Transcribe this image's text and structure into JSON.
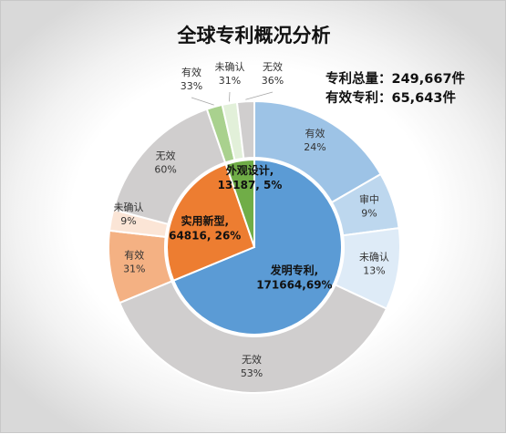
{
  "chart_data": {
    "type": "pie",
    "title": "全球专利概况分析",
    "summary": {
      "total_label": "专利总量：",
      "total_value": "249,667件",
      "valid_label": "有效专利：",
      "valid_value": "65,643件"
    },
    "inner": [
      {
        "name": "发明专利",
        "value": 171664,
        "label": "发明专利,",
        "sublabel": "171664,69%",
        "color": "#5b9bd5"
      },
      {
        "name": "实用新型",
        "value": 64816,
        "label": "实用新型,",
        "sublabel": "64816, 26%",
        "color": "#ed7d31"
      },
      {
        "name": "外观设计",
        "value": 13187,
        "label": "外观设计,",
        "sublabel": "13187, 5%",
        "color": "#70ad47"
      }
    ],
    "outer": [
      {
        "parent": "发明专利",
        "segments": [
          {
            "name": "有效",
            "percent": 24,
            "label": "24%",
            "color": "#9dc3e6"
          },
          {
            "name": "审中",
            "percent": 9,
            "label": "9%",
            "color": "#bdd7ee"
          },
          {
            "name": "未确认",
            "percent": 13,
            "label": "13%",
            "color": "#deebf7"
          },
          {
            "name": "无效",
            "percent": 53,
            "label": "53%",
            "color": "#d0cece"
          }
        ]
      },
      {
        "parent": "实用新型",
        "segments": [
          {
            "name": "有效",
            "percent": 31,
            "label": "31%",
            "color": "#f4b183"
          },
          {
            "name": "未确认",
            "percent": 9,
            "label": "9%",
            "color": "#fbe5d6"
          },
          {
            "name": "无效",
            "percent": 60,
            "label": "60%",
            "color": "#d0cece"
          }
        ]
      },
      {
        "parent": "外观设计",
        "segments": [
          {
            "name": "有效",
            "percent": 33,
            "label": "33%",
            "color": "#a9d18e"
          },
          {
            "name": "未确认",
            "percent": 31,
            "label": "31%",
            "color": "#e2f0d9"
          },
          {
            "name": "无效",
            "percent": 36,
            "label": "36%",
            "color": "#d0cece"
          }
        ]
      }
    ]
  }
}
